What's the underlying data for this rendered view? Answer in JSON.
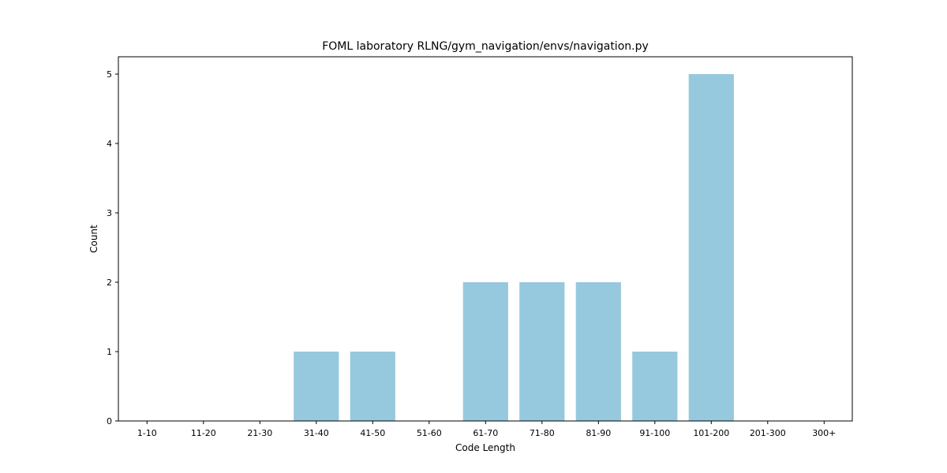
{
  "chart_data": {
    "type": "bar",
    "title": "FOML laboratory RLNG/gym_navigation/envs/navigation.py",
    "xlabel": "Code Length",
    "ylabel": "Count",
    "categories": [
      "1-10",
      "11-20",
      "21-30",
      "31-40",
      "41-50",
      "51-60",
      "61-70",
      "71-80",
      "81-90",
      "91-100",
      "101-200",
      "201-300",
      "300+"
    ],
    "values": [
      0,
      0,
      0,
      1,
      1,
      0,
      2,
      2,
      2,
      1,
      5,
      0,
      0
    ],
    "ylim": [
      0,
      5.25
    ],
    "yticks": [
      0,
      1,
      2,
      3,
      4,
      5
    ],
    "grid": false,
    "bar_color": "#96c9dd"
  }
}
